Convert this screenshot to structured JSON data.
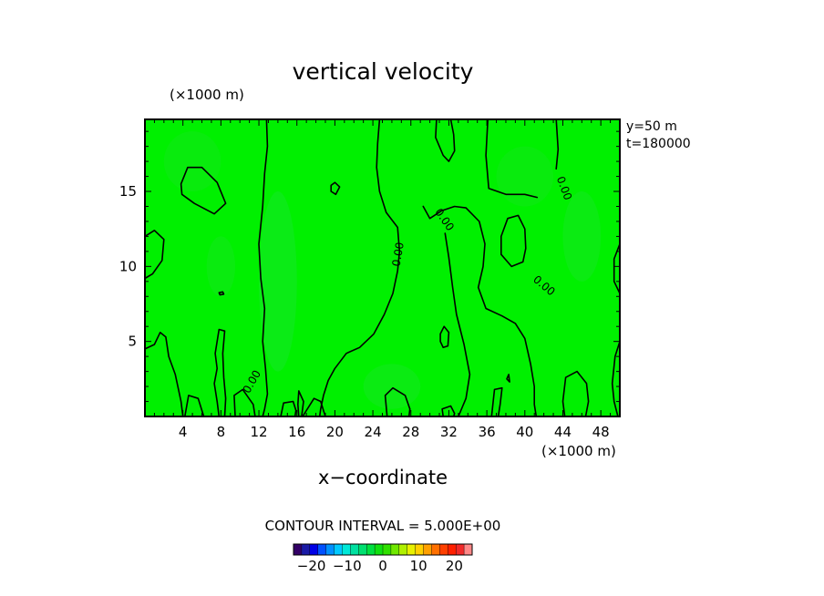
{
  "chart_data": {
    "type": "heatmap",
    "title": "vertical velocity",
    "xlabel": "x−coordinate",
    "x_unit": "(×1000 m)",
    "y_unit": "(×1000 m)",
    "xlim": [
      0,
      50
    ],
    "ylim": [
      0,
      19.8
    ],
    "x_ticks": [
      4,
      8,
      12,
      16,
      20,
      24,
      28,
      32,
      36,
      40,
      44,
      48
    ],
    "y_ticks": [
      5,
      10,
      15
    ],
    "annotations": [
      "y=50  m",
      "t=180000"
    ],
    "contour_interval_label": "CONTOUR INTERVAL = 5.000E+00",
    "field_color": "#00f000",
    "contour_label": "0.00",
    "contour_label_positions": [
      {
        "x": 11.3,
        "y": 2.3,
        "angle": -60
      },
      {
        "x": 26.7,
        "y": 10.8,
        "angle": -80
      },
      {
        "x": 31.5,
        "y": 13.1,
        "angle": 55
      },
      {
        "x": 44.1,
        "y": 15.2,
        "angle": 70
      },
      {
        "x": 42.0,
        "y": 8.7,
        "angle": 40
      }
    ],
    "colorbar": {
      "levels": [
        -25,
        -20,
        -15,
        -10,
        -5,
        0,
        5,
        10,
        15,
        20,
        25
      ],
      "tick_labels": [
        {
          "value": -20,
          "label": "−20"
        },
        {
          "value": -10,
          "label": "−10"
        },
        {
          "value": 0,
          "label": "0"
        },
        {
          "value": 10,
          "label": "10"
        },
        {
          "value": 20,
          "label": "20"
        }
      ],
      "colors": [
        "#330066",
        "#1a1aa6",
        "#0000e6",
        "#0050ff",
        "#0090ff",
        "#00c8ff",
        "#00e8d8",
        "#00e0a0",
        "#00e070",
        "#00e040",
        "#10e010",
        "#30e000",
        "#70e800",
        "#b0f000",
        "#e8f000",
        "#ffd000",
        "#ffa000",
        "#ff7000",
        "#ff4000",
        "#ff2000",
        "#f02a2a",
        "#ff8888"
      ]
    },
    "contours": [
      [
        [
          0,
          12.0
        ],
        [
          1.0,
          12.4
        ],
        [
          2.0,
          11.8
        ],
        [
          1.8,
          10.4
        ],
        [
          0.8,
          9.5
        ],
        [
          0,
          9.2
        ]
      ],
      [
        [
          0,
          4.5
        ],
        [
          1.0,
          4.8
        ],
        [
          1.6,
          5.6
        ],
        [
          2.2,
          5.3
        ],
        [
          2.5,
          4.0
        ],
        [
          3.2,
          2.8
        ],
        [
          3.8,
          1.0
        ],
        [
          4.0,
          0
        ]
      ],
      [
        [
          4.2,
          0
        ],
        [
          4.6,
          1.4
        ],
        [
          5.6,
          1.2
        ],
        [
          6.0,
          0.4
        ],
        [
          6.2,
          0
        ]
      ],
      [
        [
          3.8,
          15.5
        ],
        [
          4.5,
          16.6
        ],
        [
          6.0,
          16.6
        ],
        [
          7.6,
          15.6
        ],
        [
          8.5,
          14.2
        ],
        [
          7.3,
          13.5
        ],
        [
          5.2,
          14.2
        ],
        [
          3.9,
          14.8
        ],
        [
          3.8,
          15.5
        ]
      ],
      [
        [
          7.8,
          8.25
        ],
        [
          8.2,
          8.3
        ],
        [
          8.3,
          8.15
        ],
        [
          7.9,
          8.1
        ],
        [
          7.8,
          8.25
        ]
      ],
      [
        [
          7.8,
          0
        ],
        [
          7.6,
          1.0
        ],
        [
          7.3,
          2.2
        ],
        [
          7.6,
          3.2
        ],
        [
          7.4,
          4.2
        ],
        [
          7.8,
          5.8
        ],
        [
          8.4,
          5.7
        ],
        [
          8.2,
          4.2
        ],
        [
          8.3,
          2.6
        ],
        [
          8.5,
          1.2
        ],
        [
          8.4,
          0
        ]
      ],
      [
        [
          9.5,
          0
        ],
        [
          9.4,
          1.4
        ],
        [
          10.3,
          1.8
        ],
        [
          11.4,
          0.8
        ],
        [
          11.6,
          0
        ]
      ],
      [
        [
          12.8,
          19.8
        ],
        [
          12.9,
          18.0
        ],
        [
          12.6,
          16.2
        ],
        [
          12.4,
          14.0
        ],
        [
          12.0,
          11.5
        ],
        [
          12.2,
          9.2
        ],
        [
          12.6,
          7.2
        ],
        [
          12.4,
          5.0
        ],
        [
          12.7,
          3.2
        ],
        [
          12.9,
          1.5
        ],
        [
          12.6,
          0.5
        ],
        [
          12.4,
          0
        ]
      ],
      [
        [
          14.3,
          0
        ],
        [
          14.6,
          0.9
        ],
        [
          15.6,
          1.0
        ],
        [
          15.9,
          0.4
        ],
        [
          15.8,
          0
        ]
      ],
      [
        [
          16.5,
          0
        ],
        [
          16.7,
          1.0
        ],
        [
          16.2,
          1.7
        ],
        [
          16.1,
          0.8
        ],
        [
          16.2,
          0
        ]
      ],
      [
        [
          16.6,
          0
        ],
        [
          17.8,
          1.2
        ],
        [
          18.5,
          1.0
        ],
        [
          18.9,
          0.2
        ],
        [
          19.0,
          0
        ]
      ],
      [
        [
          19.6,
          15.4
        ],
        [
          20.0,
          15.6
        ],
        [
          20.5,
          15.3
        ],
        [
          20.1,
          14.8
        ],
        [
          19.6,
          15.0
        ],
        [
          19.6,
          15.4
        ]
      ],
      [
        [
          24.7,
          19.8
        ],
        [
          24.5,
          18.2
        ],
        [
          24.4,
          16.6
        ],
        [
          24.7,
          15.0
        ],
        [
          25.4,
          13.6
        ],
        [
          26.6,
          12.6
        ],
        [
          26.8,
          11.0
        ],
        [
          26.6,
          9.7
        ],
        [
          26.1,
          8.2
        ],
        [
          25.2,
          6.8
        ],
        [
          24.1,
          5.5
        ],
        [
          22.6,
          4.6
        ],
        [
          21.2,
          4.2
        ],
        [
          20.0,
          3.2
        ],
        [
          19.3,
          2.4
        ],
        [
          18.8,
          1.4
        ],
        [
          18.5,
          0.5
        ],
        [
          18.4,
          0
        ]
      ],
      [
        [
          25.5,
          0
        ],
        [
          25.3,
          1.4
        ],
        [
          26.1,
          1.9
        ],
        [
          27.4,
          1.4
        ],
        [
          27.9,
          0.5
        ],
        [
          27.8,
          0
        ]
      ],
      [
        [
          30.7,
          19.8
        ],
        [
          30.6,
          18.6
        ],
        [
          31.4,
          17.4
        ],
        [
          32.0,
          17.0
        ],
        [
          32.6,
          17.7
        ],
        [
          32.5,
          18.8
        ],
        [
          32.2,
          19.8
        ]
      ],
      [
        [
          29.3,
          14.0
        ],
        [
          30.0,
          13.2
        ],
        [
          31.2,
          13.7
        ],
        [
          32.6,
          14.0
        ],
        [
          33.8,
          13.9
        ],
        [
          35.2,
          13.0
        ],
        [
          35.8,
          11.5
        ],
        [
          35.6,
          10.0
        ],
        [
          35.1,
          8.6
        ],
        [
          35.9,
          7.2
        ],
        [
          37.6,
          6.7
        ],
        [
          39.0,
          6.2
        ],
        [
          40.0,
          5.2
        ],
        [
          40.6,
          3.5
        ],
        [
          41.0,
          2.0
        ],
        [
          41.0,
          0.8
        ],
        [
          41.2,
          0
        ]
      ],
      [
        [
          31.1,
          5.5
        ],
        [
          31.5,
          6.0
        ],
        [
          32.0,
          5.6
        ],
        [
          31.9,
          4.7
        ],
        [
          31.4,
          4.6
        ],
        [
          31.1,
          5.0
        ],
        [
          31.1,
          5.5
        ]
      ],
      [
        [
          31.4,
          0
        ],
        [
          31.3,
          0.5
        ],
        [
          32.2,
          0.7
        ],
        [
          32.6,
          0.2
        ],
        [
          32.5,
          0
        ]
      ],
      [
        [
          33.0,
          0
        ],
        [
          33.8,
          1.2
        ],
        [
          34.2,
          2.8
        ],
        [
          33.6,
          4.8
        ],
        [
          32.8,
          6.8
        ],
        [
          32.4,
          8.6
        ],
        [
          32.0,
          10.6
        ],
        [
          31.6,
          12.2
        ]
      ],
      [
        [
          36.1,
          19.8
        ],
        [
          35.9,
          17.4
        ],
        [
          36.2,
          15.2
        ],
        [
          38.0,
          14.8
        ],
        [
          40.0,
          14.8
        ],
        [
          41.3,
          14.6
        ]
      ],
      [
        [
          43.3,
          16.5
        ],
        [
          43.5,
          17.8
        ],
        [
          43.3,
          19.8
        ]
      ],
      [
        [
          37.5,
          12.0
        ],
        [
          38.2,
          13.2
        ],
        [
          39.3,
          13.4
        ],
        [
          40.0,
          12.5
        ],
        [
          40.1,
          11.2
        ],
        [
          39.8,
          10.3
        ],
        [
          38.6,
          10.0
        ],
        [
          37.5,
          10.8
        ],
        [
          37.5,
          12.0
        ]
      ],
      [
        [
          36.5,
          0
        ],
        [
          36.8,
          1.8
        ],
        [
          37.6,
          1.9
        ],
        [
          37.4,
          0.8
        ],
        [
          37.2,
          0
        ]
      ],
      [
        [
          38.1,
          2.5
        ],
        [
          38.3,
          2.8
        ],
        [
          38.4,
          2.3
        ],
        [
          38.1,
          2.5
        ]
      ],
      [
        [
          44.2,
          0
        ],
        [
          44.0,
          1.0
        ],
        [
          44.3,
          2.6
        ],
        [
          45.5,
          3.0
        ],
        [
          46.5,
          2.2
        ],
        [
          46.7,
          1.0
        ],
        [
          46.4,
          0
        ]
      ],
      [
        [
          50,
          11.5
        ],
        [
          49.4,
          10.5
        ],
        [
          49.4,
          9.0
        ],
        [
          50,
          8.2
        ]
      ],
      [
        [
          50,
          5.0
        ],
        [
          49.5,
          4.0
        ],
        [
          49.2,
          2.2
        ],
        [
          49.4,
          1.0
        ],
        [
          49.8,
          0
        ]
      ]
    ]
  }
}
